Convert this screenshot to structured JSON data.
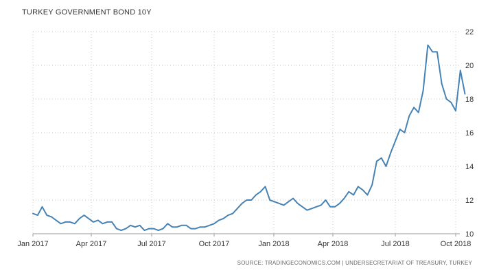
{
  "chart_data": {
    "type": "line",
    "title": "TURKEY GOVERNMENT BOND 10Y",
    "source": "SOURCE: TRADINGECONOMICS.COM | UNDERSECRETARIAT OF TREASURY, TURKEY",
    "xlabel": "",
    "ylabel": "",
    "x_ticks": [
      "Jan 2017",
      "Apr 2017",
      "Jul 2017",
      "Oct 2017",
      "Jan 2018",
      "Apr 2018",
      "Jul 2018",
      "Oct 2018"
    ],
    "y_ticks": [
      10,
      12,
      14,
      16,
      18,
      20,
      22
    ],
    "xlim": [
      "2017-01-01",
      "2018-10-31"
    ],
    "ylim": [
      10,
      22
    ],
    "grid": true,
    "legend": "none",
    "line_color": "#4682b4",
    "series": [
      {
        "x": [
          "2017-01-01",
          "2017-01-08",
          "2017-01-15",
          "2017-01-22",
          "2017-01-29",
          "2017-02-05",
          "2017-02-12",
          "2017-02-19",
          "2017-02-26",
          "2017-03-05",
          "2017-03-12",
          "2017-03-19",
          "2017-03-26",
          "2017-04-02",
          "2017-04-09",
          "2017-04-16",
          "2017-04-23",
          "2017-04-30",
          "2017-05-07",
          "2017-05-14",
          "2017-05-21",
          "2017-05-28",
          "2017-06-04",
          "2017-06-11",
          "2017-06-18",
          "2017-06-25",
          "2017-07-02",
          "2017-07-09",
          "2017-07-16",
          "2017-07-23",
          "2017-07-30",
          "2017-08-06",
          "2017-08-13",
          "2017-08-20",
          "2017-08-27",
          "2017-09-03",
          "2017-09-10",
          "2017-09-17",
          "2017-09-24",
          "2017-10-01",
          "2017-10-08",
          "2017-10-15",
          "2017-10-22",
          "2017-10-29",
          "2017-11-05",
          "2017-11-12",
          "2017-11-19",
          "2017-11-26",
          "2017-12-03",
          "2017-12-10",
          "2017-12-17",
          "2017-12-24",
          "2017-12-31",
          "2018-01-07",
          "2018-01-14",
          "2018-01-21",
          "2018-01-28",
          "2018-02-04",
          "2018-02-11",
          "2018-02-18",
          "2018-02-25",
          "2018-03-04",
          "2018-03-11",
          "2018-03-18",
          "2018-03-25",
          "2018-04-01",
          "2018-04-08",
          "2018-04-15",
          "2018-04-22",
          "2018-04-29",
          "2018-05-06",
          "2018-05-13",
          "2018-05-20",
          "2018-05-27",
          "2018-06-03",
          "2018-06-10",
          "2018-06-17",
          "2018-06-24",
          "2018-07-01",
          "2018-07-08",
          "2018-07-15",
          "2018-07-22",
          "2018-07-29",
          "2018-08-05",
          "2018-08-12",
          "2018-08-19",
          "2018-08-26",
          "2018-09-02",
          "2018-09-09",
          "2018-09-16",
          "2018-09-23",
          "2018-09-30",
          "2018-10-07",
          "2018-10-14"
        ],
        "values": [
          11.2,
          11.1,
          11.6,
          11.1,
          11.0,
          10.8,
          10.6,
          10.7,
          10.7,
          10.6,
          10.9,
          11.1,
          10.9,
          10.7,
          10.8,
          10.6,
          10.7,
          10.7,
          10.3,
          10.2,
          10.3,
          10.5,
          10.4,
          10.5,
          10.2,
          10.3,
          10.3,
          10.2,
          10.3,
          10.6,
          10.4,
          10.4,
          10.5,
          10.5,
          10.3,
          10.3,
          10.4,
          10.4,
          10.5,
          10.6,
          10.8,
          10.9,
          11.1,
          11.2,
          11.5,
          11.8,
          12.0,
          12.0,
          12.3,
          12.5,
          12.8,
          12.0,
          11.9,
          11.8,
          11.7,
          11.9,
          12.1,
          11.8,
          11.6,
          11.4,
          11.5,
          11.6,
          11.7,
          12.0,
          11.6,
          11.6,
          11.8,
          12.1,
          12.5,
          12.3,
          12.8,
          12.6,
          12.3,
          12.9,
          14.3,
          14.5,
          14.0,
          14.8,
          15.5,
          16.2,
          16.0,
          17.0,
          17.5,
          17.2,
          18.5,
          21.2,
          20.8,
          20.8,
          18.9,
          18.0,
          17.8,
          17.3,
          19.7,
          18.3
        ]
      }
    ]
  }
}
